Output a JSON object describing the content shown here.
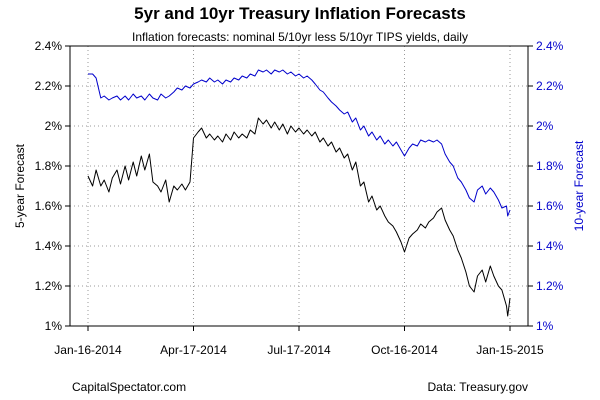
{
  "header": {
    "title": "5yr and 10yr Treasury Inflation Forecasts",
    "subtitle": "Inflation forecasts: nominal 5/10yr less 5/10yr TIPS yields, daily"
  },
  "footer": {
    "left": "CapitalSpectator.com",
    "right": "Data: Treasury.gov"
  },
  "chart_data": {
    "type": "line",
    "ylabel_left": "5-year Forecast",
    "ylabel_right": "10-year Forecast",
    "x_ticks": [
      "Jan-16-2014",
      "Apr-17-2014",
      "Jul-17-2014",
      "Oct-16-2014",
      "Jan-15-2015"
    ],
    "y_ticks_left": [
      "1%",
      "1.2%",
      "1.4%",
      "1.6%",
      "1.8%",
      "2%",
      "2.2%",
      "2.4%"
    ],
    "y_ticks_right": [
      "1%",
      "1.2%",
      "1.4%",
      "1.6%",
      "1.8%",
      "2%",
      "2.2%",
      "2.4%"
    ],
    "ylim_left": [
      1.0,
      2.4
    ],
    "ylim_right": [
      1.0,
      2.4
    ],
    "xlim": [
      "2014-01-16",
      "2015-01-15"
    ],
    "grid": true,
    "series": [
      {
        "axis": "left",
        "color": "#000000",
        "points": [
          [
            "2014-01-16",
            1.75
          ],
          [
            "2014-01-20",
            1.7
          ],
          [
            "2014-01-23",
            1.78
          ],
          [
            "2014-01-27",
            1.7
          ],
          [
            "2014-01-30",
            1.73
          ],
          [
            "2014-02-03",
            1.67
          ],
          [
            "2014-02-06",
            1.74
          ],
          [
            "2014-02-10",
            1.78
          ],
          [
            "2014-02-13",
            1.71
          ],
          [
            "2014-02-17",
            1.8
          ],
          [
            "2014-02-20",
            1.73
          ],
          [
            "2014-02-24",
            1.82
          ],
          [
            "2014-02-27",
            1.75
          ],
          [
            "2014-03-03",
            1.85
          ],
          [
            "2014-03-06",
            1.78
          ],
          [
            "2014-03-10",
            1.86
          ],
          [
            "2014-03-13",
            1.72
          ],
          [
            "2014-03-17",
            1.7
          ],
          [
            "2014-03-20",
            1.67
          ],
          [
            "2014-03-24",
            1.73
          ],
          [
            "2014-03-27",
            1.62
          ],
          [
            "2014-03-31",
            1.7
          ],
          [
            "2014-04-03",
            1.68
          ],
          [
            "2014-04-07",
            1.71
          ],
          [
            "2014-04-10",
            1.68
          ],
          [
            "2014-04-14",
            1.72
          ],
          [
            "2014-04-17",
            1.94
          ],
          [
            "2014-04-21",
            1.97
          ],
          [
            "2014-04-24",
            1.99
          ],
          [
            "2014-04-28",
            1.94
          ],
          [
            "2014-05-01",
            1.96
          ],
          [
            "2014-05-05",
            1.93
          ],
          [
            "2014-05-08",
            1.95
          ],
          [
            "2014-05-12",
            1.92
          ],
          [
            "2014-05-15",
            1.96
          ],
          [
            "2014-05-19",
            1.93
          ],
          [
            "2014-05-22",
            1.97
          ],
          [
            "2014-05-26",
            1.94
          ],
          [
            "2014-05-29",
            1.96
          ],
          [
            "2014-06-02",
            1.94
          ],
          [
            "2014-06-05",
            1.98
          ],
          [
            "2014-06-09",
            1.96
          ],
          [
            "2014-06-12",
            2.04
          ],
          [
            "2014-06-16",
            2.01
          ],
          [
            "2014-06-19",
            2.03
          ],
          [
            "2014-06-23",
            1.99
          ],
          [
            "2014-06-26",
            2.02
          ],
          [
            "2014-06-30",
            1.98
          ],
          [
            "2014-07-03",
            2.01
          ],
          [
            "2014-07-07",
            1.96
          ],
          [
            "2014-07-10",
            2.0
          ],
          [
            "2014-07-14",
            1.97
          ],
          [
            "2014-07-17",
            1.99
          ],
          [
            "2014-07-21",
            1.96
          ],
          [
            "2014-07-24",
            1.98
          ],
          [
            "2014-07-28",
            1.95
          ],
          [
            "2014-07-31",
            1.97
          ],
          [
            "2014-08-04",
            1.92
          ],
          [
            "2014-08-07",
            1.94
          ],
          [
            "2014-08-11",
            1.9
          ],
          [
            "2014-08-14",
            1.92
          ],
          [
            "2014-08-18",
            1.87
          ],
          [
            "2014-08-21",
            1.89
          ],
          [
            "2014-08-25",
            1.84
          ],
          [
            "2014-08-28",
            1.86
          ],
          [
            "2014-09-01",
            1.78
          ],
          [
            "2014-09-04",
            1.82
          ],
          [
            "2014-09-08",
            1.7
          ],
          [
            "2014-09-11",
            1.72
          ],
          [
            "2014-09-15",
            1.62
          ],
          [
            "2014-09-18",
            1.65
          ],
          [
            "2014-09-22",
            1.58
          ],
          [
            "2014-09-25",
            1.6
          ],
          [
            "2014-09-29",
            1.55
          ],
          [
            "2014-10-02",
            1.52
          ],
          [
            "2014-10-06",
            1.5
          ],
          [
            "2014-10-09",
            1.47
          ],
          [
            "2014-10-13",
            1.42
          ],
          [
            "2014-10-16",
            1.37
          ],
          [
            "2014-10-20",
            1.44
          ],
          [
            "2014-10-23",
            1.46
          ],
          [
            "2014-10-27",
            1.48
          ],
          [
            "2014-10-30",
            1.51
          ],
          [
            "2014-11-03",
            1.49
          ],
          [
            "2014-11-06",
            1.52
          ],
          [
            "2014-11-10",
            1.54
          ],
          [
            "2014-11-13",
            1.57
          ],
          [
            "2014-11-17",
            1.59
          ],
          [
            "2014-11-20",
            1.53
          ],
          [
            "2014-11-24",
            1.48
          ],
          [
            "2014-11-27",
            1.45
          ],
          [
            "2014-12-01",
            1.38
          ],
          [
            "2014-12-04",
            1.34
          ],
          [
            "2014-12-08",
            1.27
          ],
          [
            "2014-12-11",
            1.2
          ],
          [
            "2014-12-15",
            1.17
          ],
          [
            "2014-12-18",
            1.25
          ],
          [
            "2014-12-22",
            1.28
          ],
          [
            "2014-12-25",
            1.22
          ],
          [
            "2014-12-29",
            1.3
          ],
          [
            "2015-01-01",
            1.25
          ],
          [
            "2015-01-05",
            1.2
          ],
          [
            "2015-01-08",
            1.18
          ],
          [
            "2015-01-12",
            1.1
          ],
          [
            "2015-01-13",
            1.05
          ],
          [
            "2015-01-15",
            1.14
          ]
        ]
      },
      {
        "axis": "right",
        "color": "#0000cc",
        "points": [
          [
            "2014-01-16",
            2.26
          ],
          [
            "2014-01-20",
            2.26
          ],
          [
            "2014-01-23",
            2.24
          ],
          [
            "2014-01-27",
            2.14
          ],
          [
            "2014-01-30",
            2.15
          ],
          [
            "2014-02-03",
            2.13
          ],
          [
            "2014-02-06",
            2.14
          ],
          [
            "2014-02-10",
            2.15
          ],
          [
            "2014-02-13",
            2.13
          ],
          [
            "2014-02-17",
            2.15
          ],
          [
            "2014-02-20",
            2.13
          ],
          [
            "2014-02-24",
            2.16
          ],
          [
            "2014-02-27",
            2.14
          ],
          [
            "2014-03-03",
            2.15
          ],
          [
            "2014-03-06",
            2.13
          ],
          [
            "2014-03-10",
            2.16
          ],
          [
            "2014-03-13",
            2.14
          ],
          [
            "2014-03-17",
            2.13
          ],
          [
            "2014-03-20",
            2.16
          ],
          [
            "2014-03-24",
            2.14
          ],
          [
            "2014-03-27",
            2.15
          ],
          [
            "2014-03-31",
            2.17
          ],
          [
            "2014-04-03",
            2.19
          ],
          [
            "2014-04-07",
            2.18
          ],
          [
            "2014-04-10",
            2.2
          ],
          [
            "2014-04-14",
            2.19
          ],
          [
            "2014-04-17",
            2.21
          ],
          [
            "2014-04-21",
            2.22
          ],
          [
            "2014-04-24",
            2.23
          ],
          [
            "2014-04-28",
            2.22
          ],
          [
            "2014-05-01",
            2.24
          ],
          [
            "2014-05-05",
            2.22
          ],
          [
            "2014-05-08",
            2.23
          ],
          [
            "2014-05-12",
            2.21
          ],
          [
            "2014-05-15",
            2.23
          ],
          [
            "2014-05-19",
            2.22
          ],
          [
            "2014-05-22",
            2.24
          ],
          [
            "2014-05-26",
            2.23
          ],
          [
            "2014-05-29",
            2.25
          ],
          [
            "2014-06-02",
            2.24
          ],
          [
            "2014-06-05",
            2.26
          ],
          [
            "2014-06-09",
            2.25
          ],
          [
            "2014-06-12",
            2.28
          ],
          [
            "2014-06-16",
            2.27
          ],
          [
            "2014-06-19",
            2.28
          ],
          [
            "2014-06-23",
            2.26
          ],
          [
            "2014-06-26",
            2.28
          ],
          [
            "2014-06-30",
            2.27
          ],
          [
            "2014-07-03",
            2.28
          ],
          [
            "2014-07-07",
            2.26
          ],
          [
            "2014-07-10",
            2.27
          ],
          [
            "2014-07-14",
            2.25
          ],
          [
            "2014-07-17",
            2.26
          ],
          [
            "2014-07-21",
            2.24
          ],
          [
            "2014-07-24",
            2.25
          ],
          [
            "2014-07-28",
            2.23
          ],
          [
            "2014-07-31",
            2.21
          ],
          [
            "2014-08-04",
            2.18
          ],
          [
            "2014-08-07",
            2.17
          ],
          [
            "2014-08-11",
            2.14
          ],
          [
            "2014-08-14",
            2.12
          ],
          [
            "2014-08-18",
            2.1
          ],
          [
            "2014-08-21",
            2.08
          ],
          [
            "2014-08-25",
            2.06
          ],
          [
            "2014-08-28",
            2.07
          ],
          [
            "2014-09-01",
            2.02
          ],
          [
            "2014-09-04",
            2.04
          ],
          [
            "2014-09-08",
            1.98
          ],
          [
            "2014-09-11",
            2.0
          ],
          [
            "2014-09-15",
            1.95
          ],
          [
            "2014-09-18",
            1.97
          ],
          [
            "2014-09-22",
            1.93
          ],
          [
            "2014-09-25",
            1.95
          ],
          [
            "2014-09-29",
            1.91
          ],
          [
            "2014-10-02",
            1.93
          ],
          [
            "2014-10-06",
            1.9
          ],
          [
            "2014-10-09",
            1.92
          ],
          [
            "2014-10-13",
            1.88
          ],
          [
            "2014-10-16",
            1.85
          ],
          [
            "2014-10-20",
            1.89
          ],
          [
            "2014-10-23",
            1.91
          ],
          [
            "2014-10-27",
            1.9
          ],
          [
            "2014-10-30",
            1.93
          ],
          [
            "2014-11-03",
            1.92
          ],
          [
            "2014-11-06",
            1.93
          ],
          [
            "2014-11-10",
            1.92
          ],
          [
            "2014-11-13",
            1.93
          ],
          [
            "2014-11-17",
            1.91
          ],
          [
            "2014-11-20",
            1.86
          ],
          [
            "2014-11-24",
            1.82
          ],
          [
            "2014-11-27",
            1.8
          ],
          [
            "2014-12-01",
            1.74
          ],
          [
            "2014-12-04",
            1.72
          ],
          [
            "2014-12-08",
            1.68
          ],
          [
            "2014-12-11",
            1.64
          ],
          [
            "2014-12-15",
            1.62
          ],
          [
            "2014-12-18",
            1.68
          ],
          [
            "2014-12-22",
            1.7
          ],
          [
            "2014-12-25",
            1.66
          ],
          [
            "2014-12-29",
            1.69
          ],
          [
            "2015-01-01",
            1.67
          ],
          [
            "2015-01-05",
            1.63
          ],
          [
            "2015-01-08",
            1.59
          ],
          [
            "2015-01-12",
            1.6
          ],
          [
            "2015-01-13",
            1.55
          ],
          [
            "2015-01-15",
            1.58
          ]
        ]
      }
    ]
  }
}
